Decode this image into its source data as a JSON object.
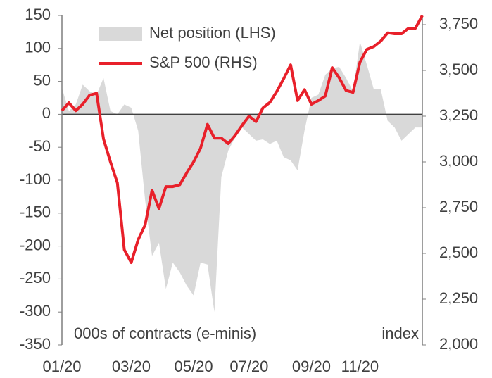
{
  "chart_data": {
    "type": "area-line",
    "categories": [
      "01/20",
      null,
      null,
      null,
      null,
      null,
      null,
      null,
      null,
      null,
      "03/20",
      null,
      null,
      null,
      null,
      null,
      null,
      null,
      null,
      "05/20",
      null,
      null,
      null,
      null,
      null,
      null,
      null,
      "07/20",
      null,
      null,
      null,
      null,
      null,
      null,
      null,
      null,
      "09/20",
      null,
      null,
      null,
      null,
      null,
      null,
      "11/20",
      null,
      null,
      null,
      null,
      null,
      null,
      null,
      null,
      null
    ],
    "series": [
      {
        "name": "Net position (LHS)",
        "type": "area",
        "color": "#d9d9d9",
        "axis": "y",
        "values": [
          40,
          5,
          15,
          45,
          35,
          30,
          55,
          5,
          0,
          15,
          10,
          -25,
          -130,
          -215,
          -195,
          -265,
          -225,
          -240,
          -260,
          -275,
          -225,
          -228,
          -300,
          -95,
          -55,
          -35,
          -20,
          -30,
          -40,
          -38,
          -45,
          -40,
          -65,
          -70,
          -85,
          -25,
          25,
          30,
          60,
          70,
          72,
          55,
          35,
          110,
          75,
          38,
          38,
          -10,
          -20,
          -40,
          -30,
          -20,
          -20
        ]
      },
      {
        "name": "S&P 500 (RHS)",
        "type": "line",
        "color": "#e8202a",
        "axis": "y2",
        "values": [
          3280,
          3323,
          3280,
          3315,
          3365,
          3375,
          3125,
          3000,
          2885,
          2520,
          2450,
          2575,
          2655,
          2845,
          2745,
          2865,
          2865,
          2875,
          2940,
          3000,
          3075,
          3205,
          3130,
          3130,
          3100,
          3145,
          3200,
          3250,
          3220,
          3295,
          3325,
          3385,
          3455,
          3530,
          3335,
          3395,
          3315,
          3335,
          3360,
          3515,
          3460,
          3390,
          3380,
          3545,
          3615,
          3630,
          3660,
          3705,
          3700,
          3700,
          3730,
          3730,
          3800
        ]
      }
    ],
    "ylim": [
      -350,
      150
    ],
    "yticks": [
      -350,
      -300,
      -250,
      -200,
      -150,
      -100,
      -50,
      0,
      50,
      100,
      150
    ],
    "y2lim": [
      2000,
      3800
    ],
    "y2ticks": [
      {
        "value": 2000,
        "label": "2,000"
      },
      {
        "value": 2250,
        "label": "2,250"
      },
      {
        "value": 2500,
        "label": "2,500"
      },
      {
        "value": 2750,
        "label": "2,750"
      },
      {
        "value": 3000,
        "label": "3,000"
      },
      {
        "value": 3250,
        "label": "3,250"
      },
      {
        "value": 3500,
        "label": "3,500"
      },
      {
        "value": 3750,
        "label": "3,750"
      }
    ],
    "annotations": [
      "000s of contracts (e-minis)",
      "index"
    ],
    "legend": "upper center"
  }
}
